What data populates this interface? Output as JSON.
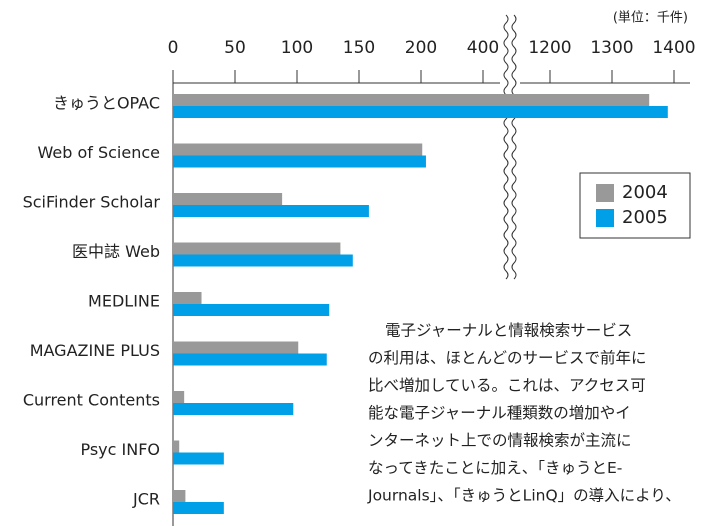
{
  "chart_data": {
    "type": "bar",
    "orientation": "horizontal",
    "unit_note": "(単位：千件)",
    "categories": [
      "きゅうとOPAC",
      "Web of Science",
      "SciFinder Scholar",
      "医中誌 Web",
      "MEDLINE",
      "MAGAZINE PLUS",
      "Current Contents",
      "Psyc INFO",
      "JCR"
    ],
    "series": [
      {
        "name": "2004",
        "color": "#999999",
        "values": [
          1360,
          204,
          88,
          135,
          23,
          101,
          9,
          5,
          10
        ]
      },
      {
        "name": "2005",
        "color": "#00a0e9",
        "values": [
          1390,
          216,
          158,
          145,
          126,
          124,
          97,
          41,
          41
        ]
      }
    ],
    "xticks": [
      0,
      50,
      100,
      150,
      200,
      400,
      1200,
      1300,
      1400
    ],
    "legend": "upper right",
    "annotation": [
      "電子ジャーナルと情報検索サービス",
      "の利用は、ほとんどのサービスで前年に",
      "比べ増加している。これは、アクセス可",
      "能な電子ジャーナル種類数の増加やイ",
      "ンターネット上での情報検索が主流に",
      "なってきたことに加え、「きゅうとE-",
      "Journals」、「きゅうとLinQ」の導入により、"
    ]
  }
}
